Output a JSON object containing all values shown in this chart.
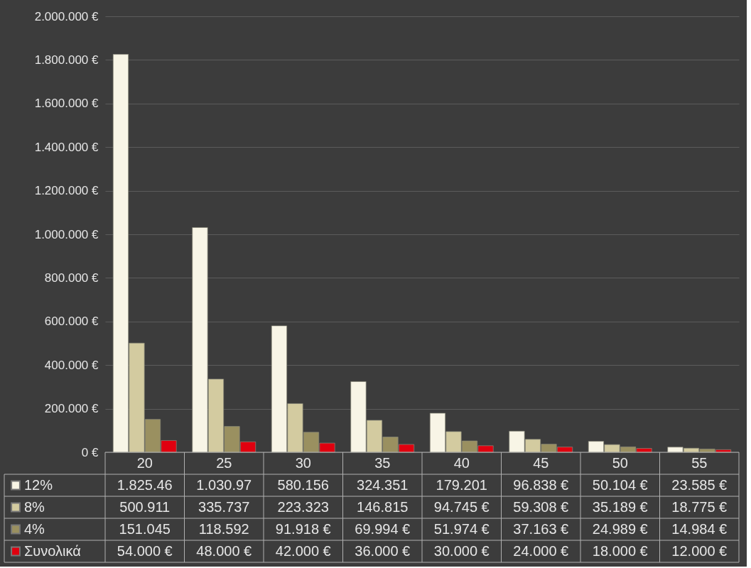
{
  "chart_data": {
    "type": "bar",
    "categories": [
      "20",
      "25",
      "30",
      "35",
      "40",
      "45",
      "50",
      "55"
    ],
    "series": [
      {
        "name": "12%",
        "color": "#f8f5e6",
        "values": [
          1825460,
          1030970,
          580156,
          324351,
          179201,
          96838,
          50104,
          23585
        ],
        "value_labels": [
          "1.825.46",
          "1.030.97",
          "580.156",
          "324.351",
          "179.201",
          "96.838 €",
          "50.104 €",
          "23.585 €"
        ]
      },
      {
        "name": "8%",
        "color": "#d3cba0",
        "values": [
          500911,
          335737,
          223323,
          146815,
          94745,
          59308,
          35189,
          18775
        ],
        "value_labels": [
          "500.911",
          "335.737",
          "223.323",
          "146.815",
          "94.745 €",
          "59.308 €",
          "35.189 €",
          "18.775 €"
        ]
      },
      {
        "name": "4%",
        "color": "#9a9060",
        "values": [
          151045,
          118592,
          91918,
          69994,
          51974,
          37163,
          24989,
          14984
        ],
        "value_labels": [
          "151.045",
          "118.592",
          "91.918 €",
          "69.994 €",
          "51.974 €",
          "37.163 €",
          "24.989 €",
          "14.984 €"
        ]
      },
      {
        "name": "Συνολικά",
        "color": "#e0000f",
        "values": [
          54000,
          48000,
          42000,
          36000,
          30000,
          24000,
          18000,
          12000
        ],
        "value_labels": [
          "54.000 €",
          "48.000 €",
          "42.000 €",
          "36.000 €",
          "30.000 €",
          "24.000 €",
          "18.000 €",
          "12.000 €"
        ]
      }
    ],
    "ylim": [
      0,
      2000000
    ],
    "yticks": [
      {
        "value": 0,
        "label": "0 €"
      },
      {
        "value": 200000,
        "label": "200.000 €"
      },
      {
        "value": 400000,
        "label": "400.000 €"
      },
      {
        "value": 600000,
        "label": "600.000 €"
      },
      {
        "value": 800000,
        "label": "800.000 €"
      },
      {
        "value": 1000000,
        "label": "1.000.000 €"
      },
      {
        "value": 1200000,
        "label": "1.200.000 €"
      },
      {
        "value": 1400000,
        "label": "1.400.000 €"
      },
      {
        "value": 1600000,
        "label": "1.600.000 €"
      },
      {
        "value": 1800000,
        "label": "1.800.000 €"
      },
      {
        "value": 2000000,
        "label": "2.000.000 €"
      }
    ],
    "grid": "y",
    "legend": "bottom"
  }
}
